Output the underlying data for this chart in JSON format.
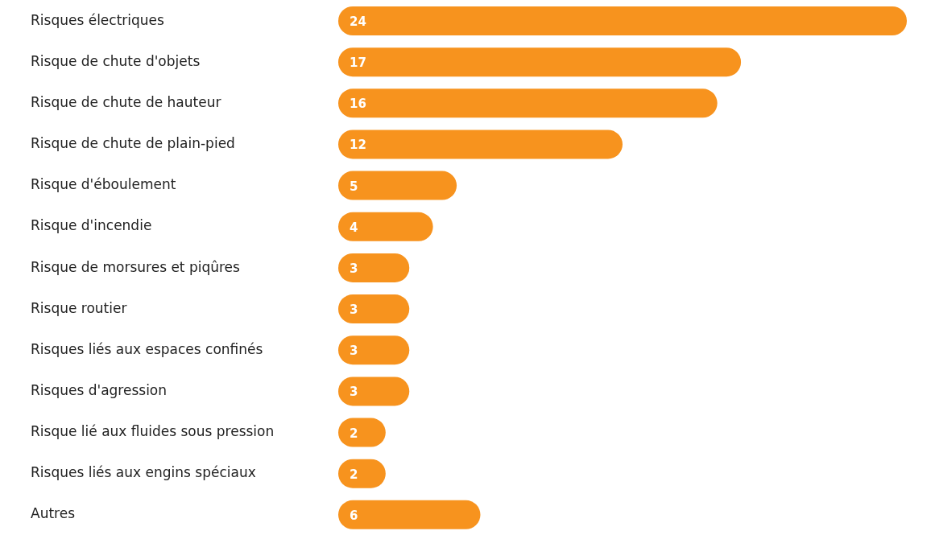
{
  "chart_data": {
    "type": "bar",
    "orientation": "horizontal",
    "categories": [
      "Risques électriques",
      "Risque de chute d'objets",
      "Risque de chute de hauteur",
      "Risque de chute de plain-pied",
      "Risque d'éboulement",
      "Risque d'incendie",
      "Risque de morsures et piqûres",
      "Risque routier",
      "Risques liés aux espaces confinés",
      "Risques d'agression",
      "Risque lié aux fluides sous pression",
      "Risques liés aux engins spéciaux",
      "Autres"
    ],
    "values": [
      24,
      17,
      16,
      12,
      5,
      4,
      3,
      3,
      3,
      3,
      2,
      2,
      6
    ],
    "color": "#f7931e",
    "data_labels": true
  }
}
